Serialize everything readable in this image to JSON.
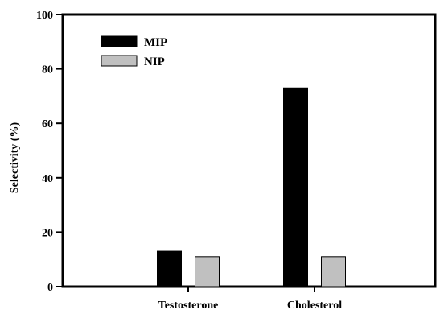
{
  "chart_data": {
    "type": "bar",
    "title": "",
    "xlabel": "",
    "ylabel": "Selectivity (%)",
    "ylim": [
      0,
      100
    ],
    "yticks": [
      0,
      20,
      40,
      60,
      80,
      100
    ],
    "categories": [
      "Testosterone",
      "Cholesterol"
    ],
    "series": [
      {
        "name": "MIP",
        "values": [
          13,
          73
        ],
        "color": "#000000"
      },
      {
        "name": "NIP",
        "values": [
          11,
          11
        ],
        "color": "#c0c0c0"
      }
    ],
    "grid": false,
    "legend_position": "top-left"
  }
}
